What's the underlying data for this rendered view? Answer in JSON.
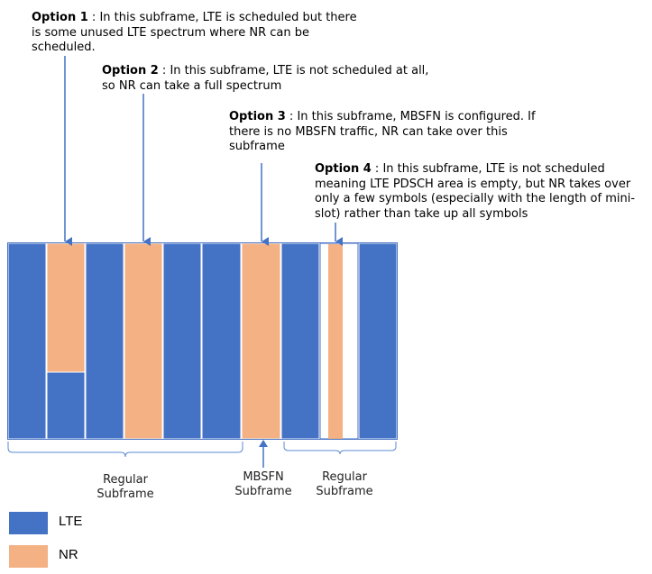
{
  "colors": {
    "lte": "#4472C4",
    "nr": "#F4B183",
    "arrow": "#4472C4",
    "brace": "#5B8BD0"
  },
  "notes": {
    "option1": {
      "label": "Option 1",
      "text": " : In this subframe, LTE is scheduled but there is some unused LTE spectrum where NR can be scheduled."
    },
    "option2": {
      "label": "Option 2",
      "text": " : In this subframe, LTE is not scheduled at all, so NR can take a full spectrum"
    },
    "option3": {
      "label": "Option 3",
      "text": " : In this subframe, MBSFN is configured. If there is no MBSFN traffic, NR can take over this subframe"
    },
    "option4": {
      "label": "Option 4",
      "text": " : In this subframe, LTE is not scheduled meaning LTE PDSCH area is empty, but NR takes over only a few symbols (especially with the length of mini-slot) rather than take up all symbols"
    }
  },
  "groups": {
    "regular1": "Regular\nSubframe",
    "mbsfn": "MBSFN\nSubframe",
    "regular2": "Regular\nSubframe"
  },
  "legend": {
    "lte": "LTE",
    "nr": "NR"
  }
}
